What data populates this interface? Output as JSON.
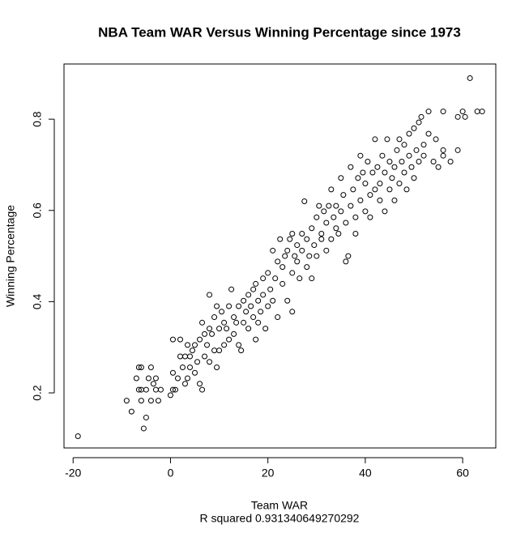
{
  "chart_data": {
    "type": "scatter",
    "title": "NBA Team WAR Versus Winning Percentage since 1973",
    "x_label": "Team WAR",
    "caption": "R squared 0.931340649270292",
    "y_label": "Winning Percentage",
    "color": "#000000",
    "xlim": [
      -21.87,
      66.8
    ],
    "ylim": [
      0.0793,
      0.921
    ],
    "xticks": [
      -20,
      0,
      20,
      40,
      60
    ],
    "yticks": [
      0.2,
      0.4,
      0.6,
      0.8
    ],
    "x": [
      -19,
      -9,
      -8,
      -7,
      -6.5,
      -6,
      -6.5,
      -6,
      -5.5,
      -5,
      -5,
      -4.5,
      -4,
      -4,
      -3.5,
      -3,
      -3,
      -2.5,
      -2,
      -6,
      0,
      0.5,
      0.5,
      0.5,
      1,
      1.5,
      2,
      2,
      2.5,
      3,
      3,
      3.5,
      3.5,
      4,
      4,
      4.5,
      5,
      5,
      5.5,
      6,
      6,
      6.5,
      6.5,
      7,
      7,
      7.5,
      8,
      8,
      8,
      8.5,
      9,
      9,
      9.5,
      9.5,
      10,
      10,
      10.5,
      11,
      11,
      11.5,
      12,
      12,
      12.5,
      13,
      13,
      13.5,
      14,
      14,
      14.5,
      15,
      15,
      15.5,
      16,
      16,
      16.5,
      17,
      17,
      17.5,
      17.5,
      18,
      18,
      18.5,
      19,
      19,
      19.5,
      20,
      20,
      20.5,
      21,
      21,
      21.5,
      22,
      22,
      22.5,
      23,
      23,
      23.5,
      24,
      24,
      24.5,
      25,
      25,
      25,
      25.5,
      26,
      26,
      26.5,
      27,
      27,
      27.5,
      28,
      28,
      28.5,
      29,
      29,
      29.5,
      30,
      30,
      30.5,
      31,
      31,
      31.5,
      32,
      32,
      32.5,
      33,
      33,
      33.5,
      34,
      34,
      34.5,
      35,
      35,
      35.5,
      36,
      36,
      36.5,
      37,
      37,
      37.5,
      38,
      38,
      38.5,
      39,
      39,
      39.5,
      40,
      40,
      40.5,
      41,
      41,
      41.5,
      42,
      42,
      42.5,
      43,
      43,
      43.5,
      44,
      44,
      44.5,
      45,
      45,
      45.5,
      46,
      46,
      46.5,
      47,
      47,
      47.5,
      48,
      48,
      48.5,
      49,
      49,
      49.5,
      50,
      50,
      50.5,
      51,
      51,
      51.5,
      52,
      52,
      53,
      53,
      54,
      54.5,
      55,
      56,
      56,
      56,
      57.5,
      59,
      59,
      60,
      60.5,
      61.5,
      63,
      64
    ],
    "values": [
      0.105,
      0.183,
      0.159,
      0.232,
      0.256,
      0.256,
      0.207,
      0.183,
      0.122,
      0.146,
      0.207,
      0.232,
      0.256,
      0.183,
      0.22,
      0.207,
      0.232,
      0.183,
      0.207,
      0.207,
      0.195,
      0.207,
      0.244,
      0.317,
      0.207,
      0.232,
      0.28,
      0.317,
      0.256,
      0.28,
      0.22,
      0.305,
      0.232,
      0.256,
      0.28,
      0.293,
      0.244,
      0.305,
      0.268,
      0.22,
      0.317,
      0.207,
      0.354,
      0.28,
      0.329,
      0.305,
      0.415,
      0.268,
      0.341,
      0.329,
      0.293,
      0.366,
      0.256,
      0.39,
      0.341,
      0.293,
      0.378,
      0.354,
      0.305,
      0.341,
      0.39,
      0.317,
      0.427,
      0.366,
      0.329,
      0.354,
      0.39,
      0.305,
      0.293,
      0.402,
      0.354,
      0.378,
      0.341,
      0.415,
      0.39,
      0.366,
      0.427,
      0.439,
      0.317,
      0.402,
      0.354,
      0.378,
      0.415,
      0.451,
      0.341,
      0.39,
      0.463,
      0.427,
      0.512,
      0.402,
      0.451,
      0.366,
      0.488,
      0.537,
      0.439,
      0.476,
      0.5,
      0.402,
      0.512,
      0.537,
      0.378,
      0.463,
      0.549,
      0.5,
      0.488,
      0.524,
      0.451,
      0.512,
      0.549,
      0.62,
      0.476,
      0.537,
      0.5,
      0.561,
      0.451,
      0.524,
      0.585,
      0.5,
      0.61,
      0.549,
      0.537,
      0.598,
      0.512,
      0.573,
      0.61,
      0.537,
      0.646,
      0.585,
      0.561,
      0.61,
      0.549,
      0.598,
      0.671,
      0.634,
      0.573,
      0.488,
      0.5,
      0.61,
      0.695,
      0.646,
      0.585,
      0.549,
      0.671,
      0.622,
      0.72,
      0.683,
      0.598,
      0.659,
      0.707,
      0.634,
      0.585,
      0.683,
      0.646,
      0.756,
      0.695,
      0.622,
      0.659,
      0.72,
      0.683,
      0.598,
      0.756,
      0.646,
      0.707,
      0.671,
      0.695,
      0.622,
      0.732,
      0.659,
      0.756,
      0.707,
      0.683,
      0.744,
      0.646,
      0.72,
      0.768,
      0.695,
      0.671,
      0.78,
      0.732,
      0.707,
      0.793,
      0.805,
      0.744,
      0.72,
      0.768,
      0.817,
      0.707,
      0.756,
      0.695,
      0.72,
      0.732,
      0.817,
      0.707,
      0.732,
      0.805,
      0.817,
      0.805,
      0.89,
      0.817,
      0.817
    ]
  }
}
